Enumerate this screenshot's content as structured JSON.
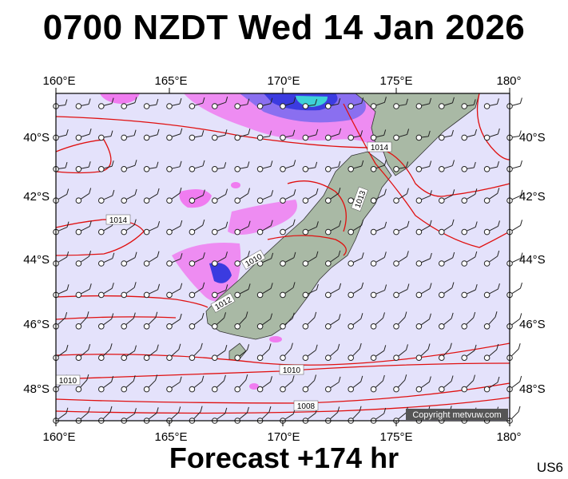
{
  "header": {
    "title": "0700 NZDT Wed 14 Jan 2026"
  },
  "footer": {
    "forecast": "Forecast +174 hr",
    "code": "US6"
  },
  "axes": {
    "lon_labels": [
      "160°E",
      "165°E",
      "170°E",
      "175°E",
      "180°"
    ],
    "lat_labels": [
      "40°S",
      "42°S",
      "44°S",
      "46°S",
      "48°S"
    ]
  },
  "isobars": {
    "labels": [
      "1014",
      "1013",
      "1014",
      "1010",
      "1012",
      "1010",
      "1010",
      "1008"
    ]
  },
  "credit": "Copyright metvuw.com",
  "colors": {
    "ocean": "#e4e2fb",
    "land": "#a9b9a5",
    "isobar": "#e01010",
    "rain_light": "#f07cf0",
    "rain_heavy": "#3a3ae0"
  }
}
